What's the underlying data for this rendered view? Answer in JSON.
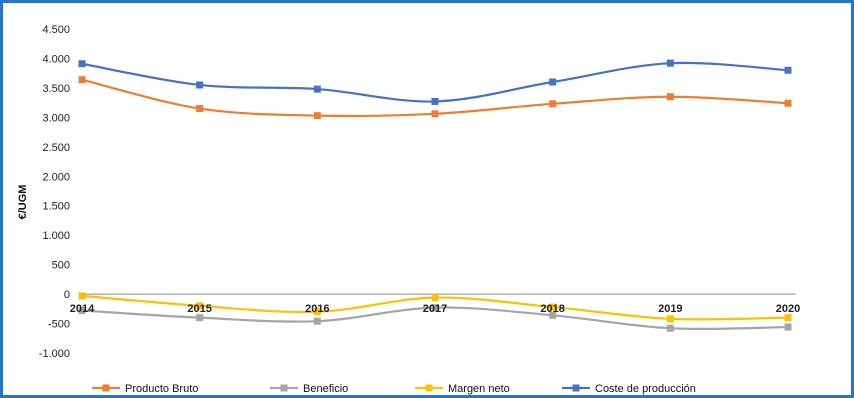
{
  "chart_data": {
    "type": "line",
    "title": "",
    "xlabel": "",
    "ylabel": "€/UGM",
    "categories": [
      "2014",
      "2015",
      "2016",
      "2017",
      "2018",
      "2019",
      "2020"
    ],
    "ylim": [
      -1000,
      4500
    ],
    "yticks": [
      4500,
      4000,
      3500,
      3000,
      2500,
      2000,
      1500,
      1000,
      500,
      0,
      -500,
      -1000
    ],
    "ytick_labels": [
      "4.500",
      "4.000",
      "3.500",
      "3.000",
      "2.500",
      "2.000",
      "1.500",
      "1.000",
      "500",
      "0",
      "-500",
      "-1.000"
    ],
    "grid": false,
    "legend_position": "bottom",
    "smooth": true,
    "series": [
      {
        "name": "Producto Bruto",
        "color": "#ed7d31",
        "values": [
          3640,
          3150,
          3030,
          3060,
          3230,
          3350,
          3240
        ]
      },
      {
        "name": "Beneficio",
        "color": "#a5a5a5",
        "values": [
          -280,
          -400,
          -460,
          -230,
          -360,
          -580,
          -560
        ]
      },
      {
        "name": "Margen neto",
        "color": "#ffc000",
        "values": [
          -30,
          -200,
          -300,
          -60,
          -220,
          -420,
          -400
        ]
      },
      {
        "name": "Coste de producción",
        "color": "#4472c4",
        "values": [
          3910,
          3550,
          3480,
          3270,
          3600,
          3920,
          3800
        ]
      }
    ]
  }
}
